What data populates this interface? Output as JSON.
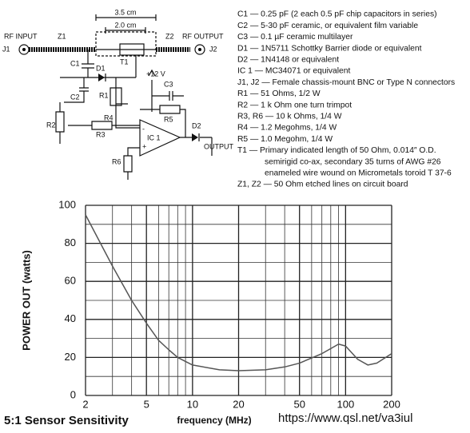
{
  "schematic": {
    "rf_input": "RF INPUT",
    "j1": "J1",
    "z1": "Z1",
    "dim_outer": "3.5 cm",
    "dim_inner": "2.0 cm",
    "z2": "Z2",
    "rf_output": "RF OUTPUT",
    "j2": "J2",
    "c1": "C1",
    "d1": "D1",
    "t1": "T1",
    "supply": "+12 V",
    "c3": "C3",
    "c2": "C2",
    "r1": "R1",
    "r4": "R4",
    "r5": "R5",
    "r2": "R2",
    "r3": "R3",
    "ic1": "IC 1",
    "plus": "+",
    "minus": "-",
    "d2": "D2",
    "output": "OUTPUT",
    "r6": "R6"
  },
  "parts_list": [
    "C1 — 0.25 pF (2 each 0.5 pF chip capacitors in series)",
    "C2 — 5-30 pF ceramic, or equivalent film variable",
    "C3 — 0.1 µF ceramic multilayer",
    "D1 — 1N5711 Schottky Barrier diode or equivalent",
    "D2 — 1N4148 or equivalent",
    "IC 1 — MC34071 or equivalent",
    "J1, J2 — Female chassis-mount BNC or Type N connectors",
    "R1 — 51 Ohms, 1/2 W",
    "R2 — 1 k Ohm one turn trimpot",
    "R3, R6 — 10 k Ohms, 1/4 W",
    "R4 — 1.2 Megohms, 1/4 W",
    "R5 — 1.0 Megohm, 1/4 W",
    "T1 — Primary indicated length of 50 Ohm, 0.014″ O.D.",
    "semirigid co-ax, secondary 35 turns of AWG #26",
    "enameled wire wound on Micrometals toroid T 37-6",
    "Z1, Z2 — 50 Ohm etched lines on circuit board"
  ],
  "chart_data": {
    "type": "line",
    "title": "5:1 Sensor Sensitivity",
    "source": "https://www.qsl.net/va3iul",
    "xlabel": "frequency (MHz)",
    "ylabel": "POWER OUT (watts)",
    "x": [
      2,
      3,
      4,
      5,
      6,
      7,
      8,
      10,
      15,
      20,
      30,
      40,
      50,
      70,
      90,
      100,
      120,
      140,
      160,
      200
    ],
    "values": [
      95,
      68,
      50,
      38,
      29,
      24,
      20,
      16,
      13.5,
      13,
      13.5,
      15,
      17,
      22,
      27,
      26,
      19,
      16,
      17,
      22
    ],
    "color": "#555555",
    "log_x": true,
    "grid": true,
    "minor_grid": true,
    "xlim": [
      2,
      200
    ],
    "xticks": [
      2,
      5,
      10,
      20,
      50,
      100,
      200
    ],
    "ylim": [
      0,
      100
    ],
    "yticks": [
      0,
      20,
      40,
      60,
      80,
      100
    ]
  }
}
